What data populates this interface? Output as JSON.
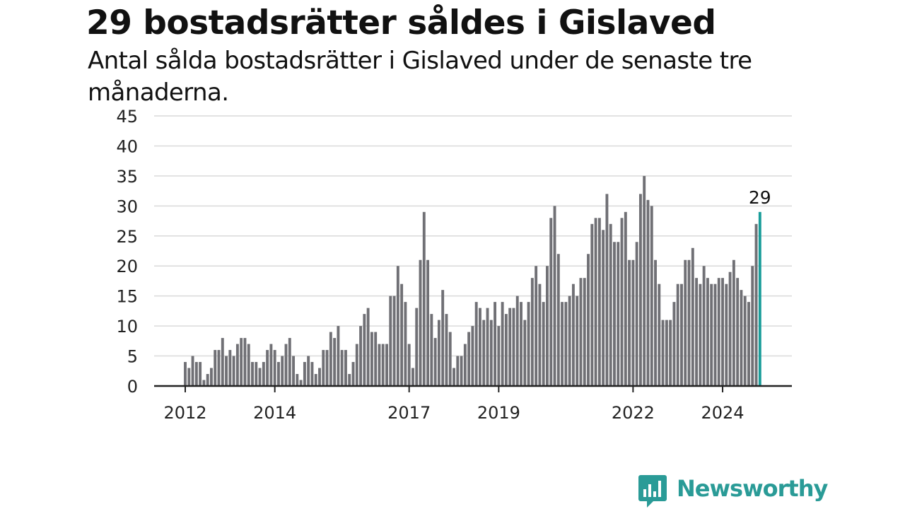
{
  "header": {
    "title": "29 bostadsrätter såldes i Gislaved",
    "subtitle": "Antal sålda bostadsrätter i Gislaved under de senaste tre månaderna."
  },
  "logo": {
    "text": "Newsworthy",
    "icon": "newsworthy-logo-icon"
  },
  "colors": {
    "bar": "#707075",
    "highlight": "#1a9d9a",
    "grid": "#d9d9d9",
    "axis": "#222222",
    "logo": "#2a9b97"
  },
  "chart_data": {
    "type": "bar",
    "title": "29 bostadsrätter såldes i Gislaved",
    "subtitle": "Antal sålda bostadsrätter i Gislaved under de senaste tre månaderna.",
    "xlabel": "",
    "ylabel": "",
    "ylim": [
      0,
      45
    ],
    "yticks": [
      0,
      5,
      10,
      15,
      20,
      25,
      30,
      35,
      40,
      45
    ],
    "xticks": [
      "2012",
      "2014",
      "2017",
      "2019",
      "2022",
      "2024"
    ],
    "grid": true,
    "start": "2012-01",
    "frequency": "monthly",
    "values": [
      4,
      3,
      5,
      4,
      4,
      1,
      2,
      3,
      6,
      6,
      8,
      5,
      6,
      5,
      7,
      8,
      8,
      7,
      4,
      4,
      3,
      4,
      6,
      7,
      6,
      4,
      5,
      7,
      8,
      5,
      2,
      1,
      4,
      5,
      4,
      2,
      3,
      6,
      6,
      9,
      8,
      10,
      6,
      6,
      2,
      4,
      7,
      10,
      12,
      13,
      9,
      9,
      7,
      7,
      7,
      15,
      15,
      20,
      17,
      14,
      7,
      3,
      13,
      21,
      29,
      21,
      12,
      8,
      11,
      16,
      12,
      9,
      3,
      5,
      5,
      7,
      9,
      10,
      14,
      13,
      11,
      13,
      11,
      14,
      10,
      14,
      12,
      13,
      13,
      15,
      14,
      11,
      14,
      18,
      20,
      17,
      14,
      20,
      28,
      30,
      22,
      14,
      14,
      15,
      17,
      15,
      18,
      18,
      22,
      27,
      28,
      28,
      26,
      32,
      27,
      24,
      24,
      28,
      29,
      21,
      21,
      24,
      32,
      35,
      31,
      30,
      21,
      17,
      11,
      11,
      11,
      14,
      17,
      17,
      21,
      21,
      23,
      18,
      17,
      20,
      18,
      17,
      17,
      18,
      18,
      17,
      19,
      21,
      18,
      16,
      15,
      14,
      20,
      27,
      29
    ],
    "highlight": {
      "category": "2024-11",
      "value": 29,
      "label": "29"
    }
  }
}
